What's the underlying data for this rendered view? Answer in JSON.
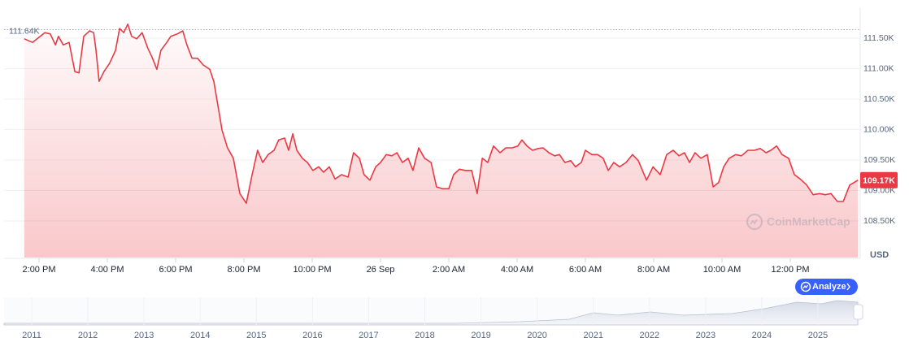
{
  "chart_data": {
    "type": "line",
    "x": [
      13.57,
      13.81,
      14.17,
      14.33,
      14.48,
      14.57,
      14.71,
      14.88,
      15.05,
      15.17,
      15.31,
      15.48,
      15.6,
      15.67,
      15.76,
      15.9,
      16.07,
      16.24,
      16.36,
      16.48,
      16.6,
      16.71,
      16.86,
      17.02,
      17.19,
      17.31,
      17.45,
      17.57,
      17.74,
      17.86,
      18.05,
      18.21,
      18.33,
      18.48,
      18.64,
      18.81,
      19.0,
      19.12,
      19.24,
      19.36,
      19.52,
      19.69,
      19.88,
      20.07,
      20.24,
      20.4,
      20.55,
      20.71,
      20.88,
      21.02,
      21.19,
      21.31,
      21.43,
      21.55,
      21.71,
      21.86,
      22.02,
      22.19,
      22.33,
      22.5,
      22.67,
      22.86,
      23.05,
      23.21,
      23.38,
      23.52,
      23.69,
      23.86,
      24.0,
      24.17,
      24.33,
      24.48,
      24.64,
      24.81,
      24.95,
      25.12,
      25.29,
      25.48,
      25.64,
      25.81,
      26.0,
      26.14,
      26.31,
      26.48,
      26.67,
      26.83,
      26.98,
      27.14,
      27.31,
      27.5,
      27.67,
      27.86,
      28.02,
      28.14,
      28.29,
      28.45,
      28.62,
      28.76,
      28.93,
      29.1,
      29.24,
      29.4,
      29.57,
      29.71,
      29.88,
      30.0,
      30.19,
      30.36,
      30.52,
      30.67,
      30.83,
      31.0,
      31.19,
      31.38,
      31.55,
      31.79,
      31.98,
      32.19,
      32.38,
      32.57,
      32.74,
      32.9,
      33.05,
      33.21,
      33.38,
      33.57,
      33.74,
      33.9,
      34.05,
      34.21,
      34.4,
      34.57,
      34.76,
      34.95,
      35.12,
      35.29,
      35.43,
      35.6,
      35.76,
      35.95,
      36.12,
      36.29,
      36.48,
      36.67,
      36.86,
      37.02,
      37.19,
      37.38,
      37.55,
      37.74,
      37.98
    ],
    "series": [
      {
        "color": "#ea3943",
        "values": [
          111.49,
          111.43,
          111.59,
          111.57,
          111.39,
          111.53,
          111.39,
          111.43,
          110.95,
          110.93,
          111.53,
          111.62,
          111.59,
          111.3,
          110.79,
          110.95,
          111.09,
          111.3,
          111.66,
          111.59,
          111.73,
          111.53,
          111.49,
          111.59,
          111.33,
          111.19,
          110.99,
          111.3,
          111.43,
          111.53,
          111.57,
          111.62,
          111.39,
          111.17,
          111.17,
          111.06,
          110.99,
          110.79,
          110.39,
          109.99,
          109.7,
          109.53,
          108.95,
          108.79,
          109.26,
          109.66,
          109.46,
          109.59,
          109.66,
          109.83,
          109.86,
          109.66,
          109.93,
          109.66,
          109.53,
          109.46,
          109.33,
          109.39,
          109.3,
          109.39,
          109.19,
          109.26,
          109.22,
          109.62,
          109.53,
          109.26,
          109.17,
          109.39,
          109.46,
          109.59,
          109.57,
          109.62,
          109.46,
          109.53,
          109.33,
          109.7,
          109.53,
          109.46,
          109.06,
          109.03,
          109.03,
          109.26,
          109.35,
          109.33,
          109.33,
          108.95,
          109.53,
          109.46,
          109.73,
          109.62,
          109.7,
          109.7,
          109.73,
          109.83,
          109.73,
          109.66,
          109.69,
          109.7,
          109.62,
          109.57,
          109.59,
          109.46,
          109.49,
          109.39,
          109.46,
          109.66,
          109.59,
          109.59,
          109.53,
          109.33,
          109.46,
          109.39,
          109.46,
          109.59,
          109.49,
          109.17,
          109.39,
          109.26,
          109.59,
          109.66,
          109.57,
          109.62,
          109.46,
          109.62,
          109.53,
          109.59,
          109.06,
          109.13,
          109.39,
          109.53,
          109.59,
          109.57,
          109.66,
          109.66,
          109.69,
          109.62,
          109.66,
          109.73,
          109.59,
          109.53,
          109.26,
          109.19,
          109.09,
          108.93,
          108.95,
          108.93,
          108.95,
          108.82,
          108.82,
          109.09,
          109.17
        ]
      }
    ],
    "xlim": [
      13,
      38
    ],
    "xticks": [
      {
        "value": 14,
        "label": "2:00 PM"
      },
      {
        "value": 16,
        "label": "4:00 PM"
      },
      {
        "value": 18,
        "label": "6:00 PM"
      },
      {
        "value": 20,
        "label": "8:00 PM"
      },
      {
        "value": 22,
        "label": "10:00 PM"
      },
      {
        "value": 24,
        "label": "26 Sep"
      },
      {
        "value": 26,
        "label": "2:00 AM"
      },
      {
        "value": 28,
        "label": "4:00 AM"
      },
      {
        "value": 30,
        "label": "6:00 AM"
      },
      {
        "value": 32,
        "label": "8:00 AM"
      },
      {
        "value": 34,
        "label": "10:00 AM"
      },
      {
        "value": 36,
        "label": "12:00 PM"
      }
    ],
    "ylim": [
      107.9,
      112.0
    ],
    "yticks": [
      {
        "value": 108.5,
        "label": "108.50K"
      },
      {
        "value": 109,
        "label": "109.00K"
      },
      {
        "value": 109.5,
        "label": "109.50K"
      },
      {
        "value": 110,
        "label": "110.00K"
      },
      {
        "value": 110.5,
        "label": "110.50K"
      },
      {
        "value": 111,
        "label": "111.00K"
      },
      {
        "value": 111.5,
        "label": "111.50K"
      }
    ],
    "grid": true,
    "y_unit": "USD",
    "high_line": {
      "value": 111.64,
      "label": "111.64K"
    },
    "current_price": {
      "value": 109.17,
      "label": "109.17K"
    },
    "watermark": "CoinMarketCap",
    "button": "Analyze",
    "navigator_years": [
      "2011",
      "2012",
      "2013",
      "2014",
      "2015",
      "2016",
      "2017",
      "2018",
      "2019",
      "2020",
      "2021",
      "2022",
      "2023",
      "2024",
      "2025"
    ]
  }
}
